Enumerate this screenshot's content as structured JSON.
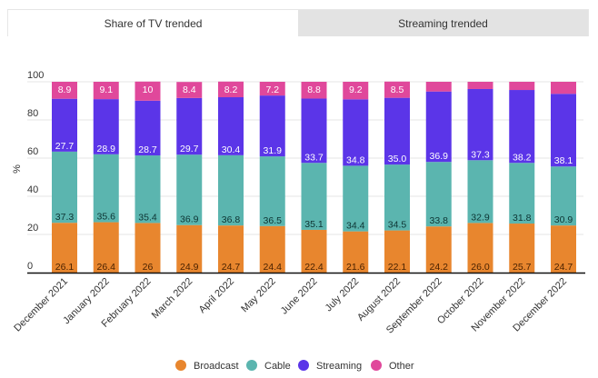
{
  "tabs": [
    {
      "label": "Share of TV trended",
      "active": true
    },
    {
      "label": "Streaming trended",
      "active": false
    }
  ],
  "chart_data": {
    "type": "bar",
    "stacked": true,
    "ylabel": "%",
    "ylim": [
      0,
      100
    ],
    "yticks": [
      0,
      20,
      40,
      60,
      80,
      100
    ],
    "grid": true,
    "legend_position": "bottom",
    "categories": [
      "December 2021",
      "January 2022",
      "February 2022",
      "March 2022",
      "April 2022",
      "May 2022",
      "June 2022",
      "July 2022",
      "August 2022",
      "September 2022",
      "October 2022",
      "November 2022",
      "December 2022"
    ],
    "series": [
      {
        "name": "Broadcast",
        "color": "#E8862E",
        "label_color": "#4a2200",
        "values": [
          26.1,
          26.4,
          26,
          24.9,
          24.7,
          24.4,
          22.4,
          21.6,
          22.1,
          24.2,
          26.0,
          25.7,
          24.7
        ],
        "labels": [
          "26.1",
          "26.4",
          "26",
          "24.9",
          "24.7",
          "24.4",
          "22.4",
          "21.6",
          "22.1",
          "24.2",
          "26.0",
          "25.7",
          "24.7"
        ]
      },
      {
        "name": "Cable",
        "color": "#5BB5AF",
        "label_color": "#0d3433",
        "values": [
          37.3,
          35.6,
          35.4,
          36.9,
          36.8,
          36.5,
          35.1,
          34.4,
          34.5,
          33.8,
          32.9,
          31.8,
          30.9
        ],
        "labels": [
          "37.3",
          "35.6",
          "35.4",
          "36.9",
          "36.8",
          "36.5",
          "35.1",
          "34.4",
          "34.5",
          "33.8",
          "32.9",
          "31.8",
          "30.9"
        ]
      },
      {
        "name": "Streaming",
        "color": "#5B35E8",
        "label_color": "#ffffff",
        "values": [
          27.7,
          28.9,
          28.7,
          29.7,
          30.4,
          31.9,
          33.7,
          34.8,
          35.0,
          36.9,
          37.3,
          38.2,
          38.1
        ],
        "labels": [
          "27.7",
          "28.9",
          "28.7",
          "29.7",
          "30.4",
          "31.9",
          "33.7",
          "34.8",
          "35.0",
          "36.9",
          "37.3",
          "38.2",
          "38.1"
        ]
      },
      {
        "name": "Other",
        "color": "#E0489B",
        "label_color": "#ffffff",
        "values": [
          8.9,
          9.1,
          10,
          8.4,
          8.2,
          7.2,
          8.8,
          9.2,
          8.5,
          5.1,
          3.8,
          4.3,
          6.3
        ],
        "labels": [
          "8.9",
          "9.1",
          "10",
          "8.4",
          "8.2",
          "7.2",
          "8.8",
          "9.2",
          "8.5",
          "",
          "",
          "",
          ""
        ]
      }
    ]
  }
}
